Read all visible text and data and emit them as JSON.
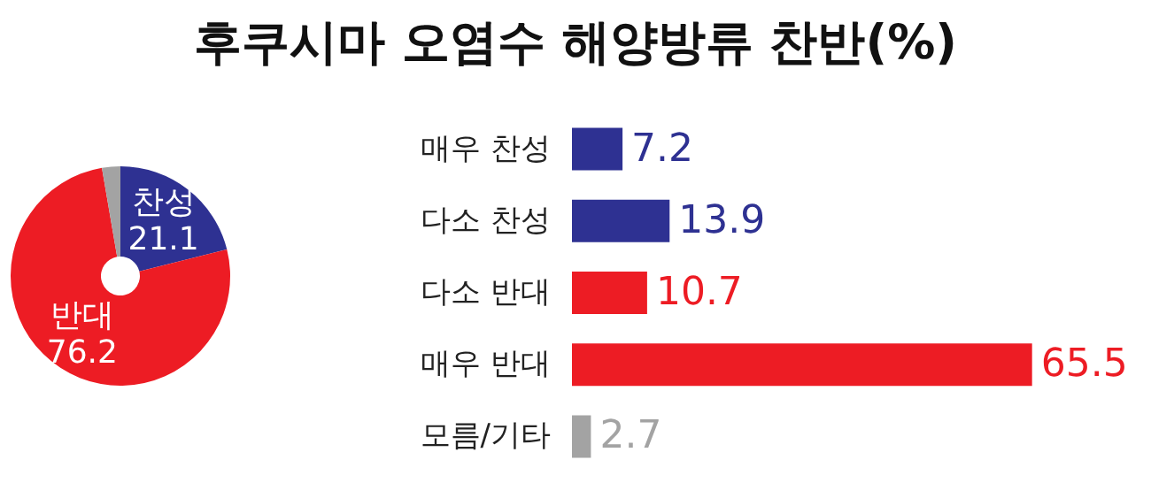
{
  "chart_data": [
    {
      "type": "donut",
      "categories": [
        "찬성",
        "반대",
        null
      ],
      "values": [
        21.1,
        76.2,
        2.7
      ],
      "colors": [
        "#2e3192",
        "#ed1c24",
        "#a3a3a3"
      ],
      "value_labels": [
        "21.1",
        "76.2",
        null
      ],
      "legend": false
    },
    {
      "type": "bar",
      "title": "후쿠시마 오염수 해양방류 찬반(%)",
      "orientation": "horizontal",
      "categories": [
        "매우 찬성",
        "다소 찬성",
        "다소 반대",
        "매우 반대",
        "모름/기타"
      ],
      "values": [
        7.2,
        13.9,
        10.7,
        65.5,
        2.7
      ],
      "colors": [
        "#2e3192",
        "#2e3192",
        "#ed1c24",
        "#ed1c24",
        "#a3a3a3"
      ],
      "data_labels": true,
      "legend": false
    }
  ]
}
